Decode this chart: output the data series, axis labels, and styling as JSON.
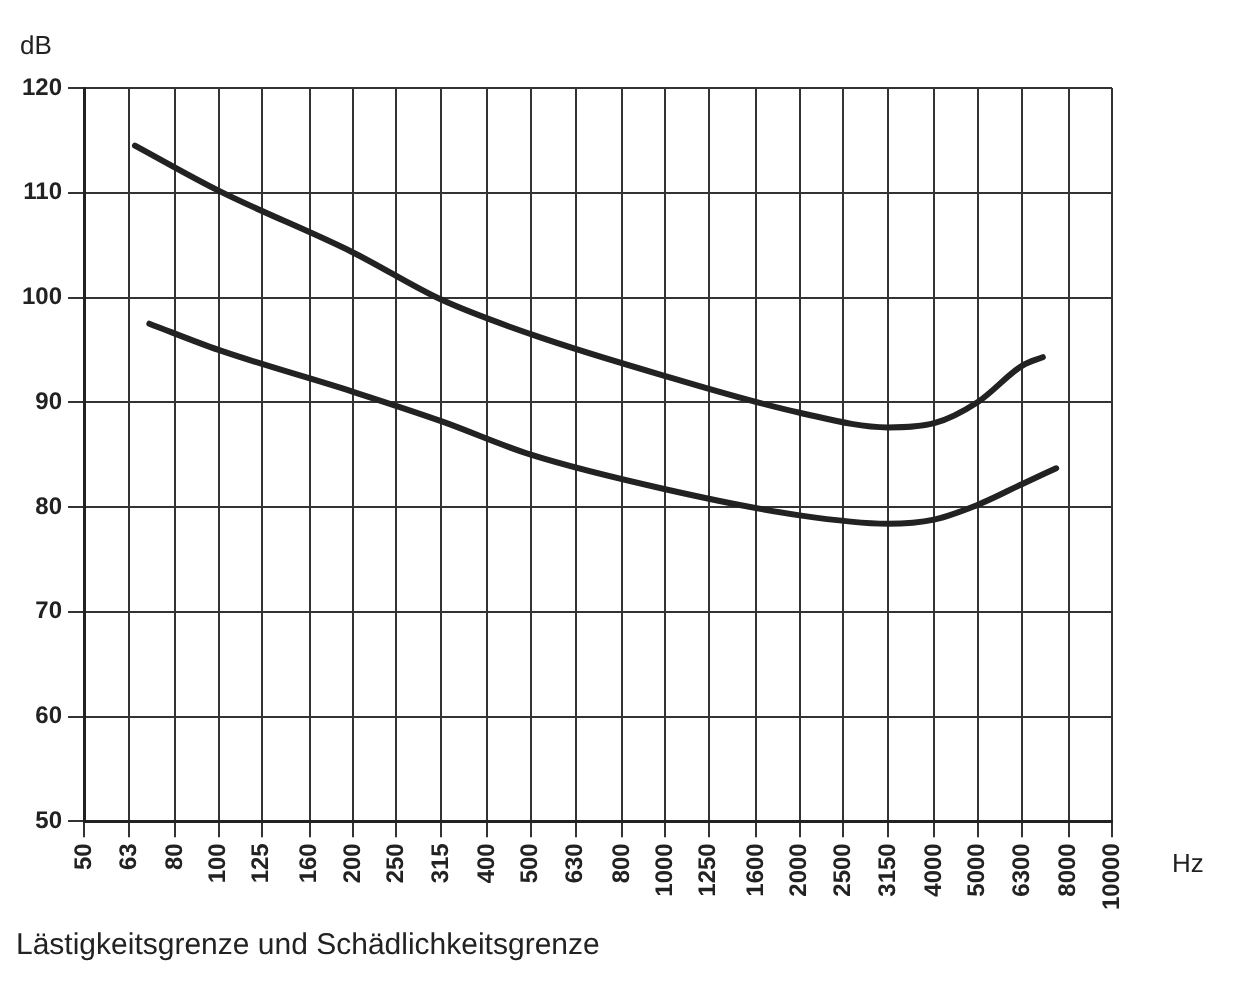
{
  "chart_data": {
    "type": "line",
    "xlabel": "Hz",
    "ylabel": "dB",
    "annotations": [
      "Lästigkeitsgrenze und Schädlichkeitsgrenze"
    ],
    "log": "x",
    "xlim": [
      50,
      10000
    ],
    "xticks": [
      50,
      63,
      80,
      100,
      125,
      160,
      200,
      250,
      315,
      400,
      500,
      630,
      800,
      1000,
      1250,
      1600,
      2000,
      2500,
      3150,
      4000,
      5000,
      6300,
      8000,
      10000
    ],
    "ylim": [
      50,
      120
    ],
    "yticks": [
      50,
      60,
      70,
      80,
      90,
      100,
      110,
      120
    ],
    "grid": true,
    "marker": "none",
    "line_style": "solid",
    "series": [
      {
        "color": "#222222",
        "x": [
          65,
          100,
          200,
          315,
          500,
          1000,
          2000,
          3150,
          4000,
          5000,
          6300,
          7000
        ],
        "values": [
          114.5,
          110.2,
          104.3,
          99.8,
          96.5,
          92.5,
          89,
          87.6,
          88,
          90,
          93.5,
          94.3
        ]
      },
      {
        "color": "#222222",
        "x": [
          70,
          100,
          200,
          315,
          500,
          1000,
          2000,
          3150,
          4000,
          5000,
          6300,
          7500
        ],
        "values": [
          97.5,
          95,
          91,
          88.2,
          85,
          81.7,
          79.2,
          78.4,
          78.8,
          80.2,
          82.2,
          83.7
        ]
      }
    ]
  }
}
